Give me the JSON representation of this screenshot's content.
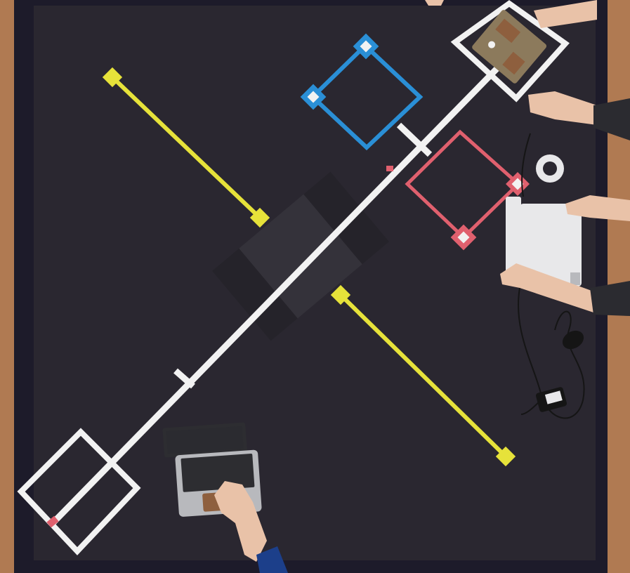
{
  "scene": {
    "description_kind": "overhead-photo",
    "colors": {
      "floor": "#b07a52",
      "floor_dark": "#8e5f3e",
      "wall": "#1d1b2a",
      "board": "#2a2730",
      "tape_white": "#f2f2f2",
      "tape_yellow": "#e6e23a",
      "tape_blue": "#2a8fd6",
      "tape_red": "#e0606e",
      "ramp": "#34323a",
      "ramp_dark": "#25232a",
      "skin": "#e9c2a8",
      "laptop_silver": "#b8b9bd",
      "laptop_white": "#e8e8ea",
      "keyboard": "#2d2d31",
      "sleeve_blue": "#1c3f8a",
      "sleeve_dark": "#2b2b30",
      "robot_board": "#8c7a5c",
      "cable": "#151515"
    },
    "icons": {
      "arena": "arena-board",
      "laptop": "laptop-icon",
      "robot": "robot-icon",
      "tape_roll": "tape-roll-icon"
    }
  }
}
